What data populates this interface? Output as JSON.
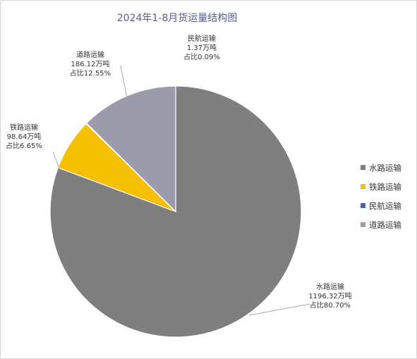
{
  "chart_data": {
    "type": "pie",
    "title": "2024年1-8月货运量结构图",
    "unit": "万吨",
    "start_angle_deg": 0,
    "direction": "clockwise",
    "legend_position": "right",
    "slices": [
      {
        "name": "水路运输",
        "value": 1196.32,
        "percent": 80.7,
        "color": "#7f7f7f",
        "label_lines": [
          "水路运输",
          "1196.32万吨",
          "占比80.70%"
        ]
      },
      {
        "name": "铁路运输",
        "value": 98.64,
        "percent": 6.65,
        "color": "#f5c000",
        "label_lines": [
          "铁路运输",
          "98.64万吨",
          "占比6.65%"
        ]
      },
      {
        "name": "民航运输",
        "value": 1.37,
        "percent": 0.09,
        "color": "#4a5fa8",
        "label_lines": [
          "民航运输",
          "1.37万吨",
          "占比0.09%"
        ]
      },
      {
        "name": "道路运输",
        "value": 186.12,
        "percent": 12.55,
        "color": "#9b9bab",
        "label_lines": [
          "道路运输",
          "186.12万吨",
          "占比12.55%"
        ]
      }
    ]
  }
}
